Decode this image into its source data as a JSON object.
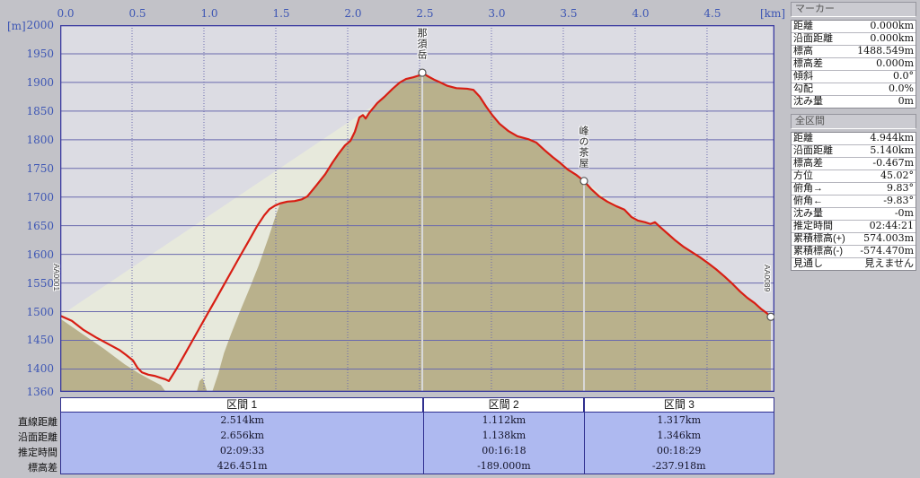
{
  "axis": {
    "unit_y": "[m]",
    "unit_x": "[km]",
    "x_ticks": [
      "0.0",
      "0.5",
      "1.0",
      "1.5",
      "2.0",
      "2.5",
      "3.0",
      "3.5",
      "4.0",
      "4.5"
    ],
    "y_ticks": [
      2000,
      1950,
      1900,
      1850,
      1800,
      1750,
      1700,
      1650,
      1600,
      1550,
      1500,
      1450,
      1400
    ],
    "y_floor_label": "1360"
  },
  "chart_data": {
    "type": "area",
    "title": "",
    "xlabel": "[km]",
    "ylabel": "[m]",
    "xlim": [
      0,
      4.969
    ],
    "ylim": [
      1360,
      2000
    ],
    "x_tick_step": 0.5,
    "y_tick_step": 50,
    "grid": true,
    "colors": {
      "plot_bg": "#dcdce3",
      "frame": "#3a3aa0",
      "grid": "#6a6aae",
      "track_line": "#d81e14",
      "terrain_fill": "#b9b18c",
      "sight_fill": "#e7e9dc",
      "marker_line": "#d8d8d8",
      "section_fill": "#aeb9f0",
      "axis_text": "#3c55b4"
    },
    "series": [
      {
        "name": "track",
        "color": "#d81e14",
        "points": [
          [
            0.0,
            1493
          ],
          [
            0.081,
            1484
          ],
          [
            0.163,
            1468
          ],
          [
            0.25,
            1455
          ],
          [
            0.331,
            1444
          ],
          [
            0.413,
            1433
          ],
          [
            0.456,
            1425
          ],
          [
            0.506,
            1415
          ],
          [
            0.538,
            1402
          ],
          [
            0.569,
            1394
          ],
          [
            0.613,
            1390
          ],
          [
            0.656,
            1388
          ],
          [
            0.694,
            1385
          ],
          [
            0.731,
            1382
          ],
          [
            0.756,
            1379
          ],
          [
            0.806,
            1399
          ],
          [
            0.863,
            1424
          ],
          [
            0.919,
            1449
          ],
          [
            0.975,
            1474
          ],
          [
            1.031,
            1499
          ],
          [
            1.088,
            1524
          ],
          [
            1.144,
            1549
          ],
          [
            1.2,
            1574
          ],
          [
            1.256,
            1599
          ],
          [
            1.313,
            1624
          ],
          [
            1.369,
            1649
          ],
          [
            1.419,
            1668
          ],
          [
            1.456,
            1679
          ],
          [
            1.494,
            1685
          ],
          [
            1.531,
            1689
          ],
          [
            1.581,
            1692
          ],
          [
            1.631,
            1693
          ],
          [
            1.681,
            1696
          ],
          [
            1.719,
            1701
          ],
          [
            1.781,
            1720
          ],
          [
            1.844,
            1740
          ],
          [
            1.894,
            1760
          ],
          [
            1.938,
            1776
          ],
          [
            1.981,
            1790
          ],
          [
            2.019,
            1798
          ],
          [
            2.05,
            1814
          ],
          [
            2.081,
            1839
          ],
          [
            2.106,
            1843
          ],
          [
            2.125,
            1837
          ],
          [
            2.15,
            1847
          ],
          [
            2.206,
            1864
          ],
          [
            2.256,
            1875
          ],
          [
            2.313,
            1889
          ],
          [
            2.363,
            1900
          ],
          [
            2.406,
            1906
          ],
          [
            2.456,
            1909
          ],
          [
            2.494,
            1912
          ],
          [
            2.519,
            1917
          ],
          [
            2.556,
            1911
          ],
          [
            2.6,
            1905
          ],
          [
            2.644,
            1900
          ],
          [
            2.694,
            1894
          ],
          [
            2.756,
            1890
          ],
          [
            2.831,
            1889
          ],
          [
            2.875,
            1887
          ],
          [
            2.919,
            1875
          ],
          [
            2.963,
            1858
          ],
          [
            3.006,
            1843
          ],
          [
            3.056,
            1828
          ],
          [
            3.119,
            1815
          ],
          [
            3.181,
            1806
          ],
          [
            3.256,
            1801
          ],
          [
            3.313,
            1795
          ],
          [
            3.369,
            1782
          ],
          [
            3.425,
            1770
          ],
          [
            3.481,
            1759
          ],
          [
            3.531,
            1748
          ],
          [
            3.588,
            1739
          ],
          [
            3.644,
            1728
          ],
          [
            3.694,
            1714
          ],
          [
            3.75,
            1701
          ],
          [
            3.806,
            1692
          ],
          [
            3.869,
            1684
          ],
          [
            3.925,
            1678
          ],
          [
            3.975,
            1665
          ],
          [
            4.019,
            1659
          ],
          [
            4.069,
            1656
          ],
          [
            4.106,
            1653
          ],
          [
            4.138,
            1656
          ],
          [
            4.181,
            1646
          ],
          [
            4.231,
            1635
          ],
          [
            4.281,
            1624
          ],
          [
            4.338,
            1613
          ],
          [
            4.394,
            1604
          ],
          [
            4.45,
            1595
          ],
          [
            4.506,
            1585
          ],
          [
            4.563,
            1574
          ],
          [
            4.619,
            1562
          ],
          [
            4.675,
            1549
          ],
          [
            4.731,
            1535
          ],
          [
            4.781,
            1524
          ],
          [
            4.831,
            1515
          ],
          [
            4.875,
            1505
          ],
          [
            4.913,
            1498
          ],
          [
            4.944,
            1491
          ]
        ]
      },
      {
        "name": "terrain-behind",
        "color": "#b9b18c",
        "join_track_from_km": 1.581,
        "points": [
          [
            0.0,
            1488
          ],
          [
            0.15,
            1462
          ],
          [
            0.3,
            1436
          ],
          [
            0.45,
            1408
          ],
          [
            0.55,
            1392
          ],
          [
            0.63,
            1381
          ],
          [
            0.7,
            1372
          ],
          [
            0.74,
            1358
          ],
          [
            0.78,
            1340
          ],
          [
            0.93,
            1338
          ],
          [
            0.95,
            1360
          ],
          [
            0.97,
            1379
          ],
          [
            0.99,
            1384
          ],
          [
            1.01,
            1370
          ],
          [
            1.03,
            1354
          ],
          [
            1.06,
            1362
          ],
          [
            1.1,
            1392
          ],
          [
            1.14,
            1428
          ],
          [
            1.19,
            1462
          ],
          [
            1.25,
            1500
          ],
          [
            1.31,
            1536
          ],
          [
            1.38,
            1580
          ],
          [
            1.45,
            1630
          ],
          [
            1.5,
            1668
          ],
          [
            1.531,
            1689
          ]
        ]
      },
      {
        "name": "sight-line",
        "color": "#e7e9dc",
        "points": [
          [
            0.0,
            1493
          ],
          [
            2.519,
            1917
          ],
          [
            3.644,
            1728
          ],
          [
            4.944,
            1491
          ]
        ]
      }
    ],
    "waypoints": [
      {
        "label": "AA0001",
        "km": 0.0,
        "m": 1493,
        "marker": "flag",
        "line": false
      },
      {
        "label": "那須岳",
        "km": 2.519,
        "m": 1917,
        "marker": "circle",
        "line": true
      },
      {
        "label": "峰の茶屋",
        "km": 3.644,
        "m": 1728,
        "marker": "circle",
        "line": true
      },
      {
        "label": "AA0089",
        "km": 4.944,
        "m": 1491,
        "marker": "circle",
        "line": false
      }
    ]
  },
  "marker_panel": {
    "title": "マーカー",
    "rows": [
      {
        "label": "距離",
        "value": "0.000km"
      },
      {
        "label": "沿面距離",
        "value": "0.000km"
      },
      {
        "label": "標高",
        "value": "1488.549m"
      },
      {
        "label": "標高差",
        "value": "0.000m"
      },
      {
        "label": "傾斜",
        "value": "0.0°"
      },
      {
        "label": "勾配",
        "value": "0.0%"
      },
      {
        "label": "沈み量",
        "value": "0m"
      }
    ]
  },
  "total_panel": {
    "title": "全区間",
    "rows": [
      {
        "label": "距離",
        "value": "4.944km"
      },
      {
        "label": "沿面距離",
        "value": "5.140km"
      },
      {
        "label": "標高差",
        "value": "-0.467m"
      },
      {
        "label": "方位",
        "value": "45.02°"
      },
      {
        "label": "俯角→",
        "value": "9.83°"
      },
      {
        "label": "俯角←",
        "value": "-9.83°"
      },
      {
        "label": "沈み量",
        "value": "-0m"
      },
      {
        "label": "推定時間",
        "value": "02:44:21"
      },
      {
        "label": "累積標高(+)",
        "value": "574.003m"
      },
      {
        "label": "累積標高(-)",
        "value": "-574.470m"
      },
      {
        "label": "見通し",
        "value": "見えません"
      }
    ]
  },
  "sections": {
    "row_labels": [
      "直線距離",
      "沿面距離",
      "推定時間",
      "標高差"
    ],
    "total_km": 4.944,
    "columns": [
      {
        "header": "区間 1",
        "distance_km": 2.514,
        "values": [
          "2.514km",
          "2.656km",
          "02:09:33",
          "426.451m"
        ]
      },
      {
        "header": "区間 2",
        "distance_km": 1.112,
        "values": [
          "1.112km",
          "1.138km",
          "00:16:18",
          "-189.000m"
        ]
      },
      {
        "header": "区間 3",
        "distance_km": 1.317,
        "values": [
          "1.317km",
          "1.346km",
          "00:18:29",
          "-237.918m"
        ]
      }
    ]
  }
}
